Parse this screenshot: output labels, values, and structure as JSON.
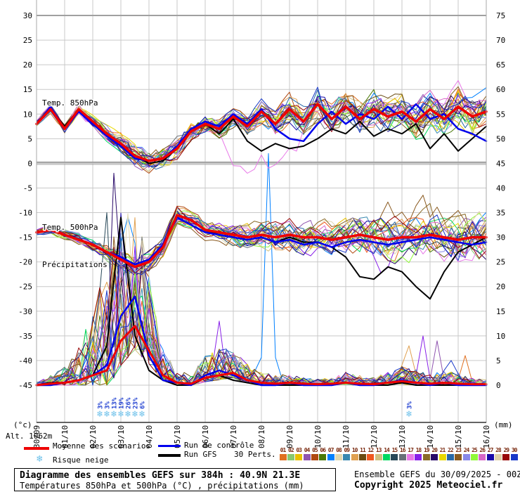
{
  "chart_data": {
    "type": "line",
    "title": "Diagramme des ensembles GEFS sur 384h : 40.9N 21.3E",
    "x_axis": {
      "dates": [
        "30/09",
        "01/10",
        "02/10",
        "03/10",
        "04/10",
        "05/10",
        "06/10",
        "07/10",
        "08/10",
        "09/10",
        "10/10",
        "11/10",
        "12/10",
        "13/10",
        "14/10",
        "15/10",
        "16/10"
      ],
      "hours_step": 12,
      "total_hours": 384
    },
    "y_axis_left": {
      "label": "(°c)",
      "min": -45,
      "max": 30,
      "tick_step": 5,
      "ticks": [
        30,
        25,
        20,
        15,
        10,
        5,
        0,
        -5,
        -10,
        -15,
        -20,
        -25,
        -30,
        -35,
        -40,
        -45
      ]
    },
    "y_axis_right": {
      "label": "(mm)",
      "min": 0,
      "max": 75,
      "tick_step": 5,
      "ticks": [
        75,
        70,
        65,
        60,
        55,
        50,
        45,
        40,
        35,
        30,
        25,
        20,
        15,
        10,
        5,
        0
      ]
    },
    "annotations": {
      "temp850": "Temp. 850hPa",
      "temp500": "Temp. 500hPa",
      "precip": "Précipitations",
      "altitude": "Alt. 1062m"
    },
    "series": {
      "mean_850": [
        8,
        11,
        7,
        11,
        8.5,
        6,
        4,
        1.5,
        0.5,
        1,
        3,
        6.5,
        8,
        7,
        9.5,
        7.5,
        10.5,
        8,
        11,
        8.5,
        12,
        9,
        11.5,
        9,
        11,
        9.5,
        10.5,
        8.5,
        11,
        9,
        11.5,
        9.5,
        10.5
      ],
      "control_850": [
        8,
        11.5,
        7,
        10.5,
        8,
        5.5,
        3.5,
        1,
        0.5,
        1,
        3.5,
        7,
        8.5,
        7.5,
        10,
        8,
        11,
        7,
        5,
        4.5,
        8,
        10.5,
        8,
        10,
        9,
        11.5,
        9,
        12,
        9,
        10,
        7,
        6,
        4.5
      ],
      "gfs_850": [
        8,
        11,
        7.5,
        11,
        8.5,
        6,
        4,
        1.5,
        0,
        0.5,
        3,
        6.5,
        8,
        6,
        9,
        4.5,
        2.5,
        4,
        3,
        3.5,
        5,
        7,
        6,
        8.5,
        5.5,
        7,
        6,
        8,
        3,
        6,
        2.5,
        5,
        7.5
      ],
      "mean_500": [
        -14,
        -13.5,
        -14.5,
        -15.5,
        -16.5,
        -18,
        -19.5,
        -21,
        -20,
        -17,
        -10.5,
        -11.5,
        -13.5,
        -14,
        -14.5,
        -15,
        -14.5,
        -15,
        -14.5,
        -15,
        -15,
        -15.5,
        -15,
        -14.5,
        -15,
        -15.5,
        -15,
        -15,
        -14.5,
        -15,
        -15.5,
        -15,
        -15
      ],
      "control_500": [
        -14,
        -13.5,
        -14.5,
        -15.5,
        -16.5,
        -18,
        -19,
        -20.5,
        -19.5,
        -16.5,
        -11,
        -12.5,
        -14,
        -14.5,
        -15,
        -15.5,
        -15,
        -16,
        -15.5,
        -16.5,
        -16,
        -17,
        -16,
        -15.5,
        -16,
        -16.5,
        -16,
        -15.5,
        -15,
        -15.5,
        -16,
        -16.5,
        -16
      ],
      "gfs_500": [
        -14,
        -13.5,
        -14.5,
        -15.5,
        -16.5,
        -18,
        -19.5,
        -21,
        -20,
        -17,
        -10.5,
        -11.5,
        -13.5,
        -14.5,
        -15,
        -15.5,
        -15,
        -16,
        -15,
        -16,
        -16,
        -17,
        -19,
        -23,
        -23.5,
        -21,
        -22,
        -25,
        -27.5,
        -22,
        -18,
        -16.5,
        -15
      ],
      "mean_precip_mm": [
        0,
        0.3,
        0.5,
        1,
        2,
        3,
        9,
        12,
        7,
        2,
        0.5,
        0.3,
        1.5,
        2,
        2.5,
        1,
        0.5,
        0.3,
        0.5,
        0.3,
        0.2,
        0.3,
        0.5,
        0.3,
        0.2,
        0.5,
        0.8,
        0.5,
        0.3,
        0.5,
        0.3,
        0.2,
        0.2
      ],
      "control_precip_mm": [
        0,
        0,
        0.5,
        1,
        2,
        4,
        14,
        18,
        6,
        1,
        0.5,
        0,
        2,
        3,
        2,
        1,
        0,
        0,
        0.5,
        0,
        0,
        0,
        0.5,
        0,
        0,
        0.5,
        1,
        0.5,
        0,
        0.5,
        0,
        0,
        0
      ],
      "gfs_precip_mm": [
        0,
        0.5,
        0.5,
        1,
        2,
        8,
        34,
        10,
        3,
        1,
        0,
        0,
        1.5,
        2,
        1,
        0.5,
        0,
        0,
        0,
        0,
        0,
        0,
        0.5,
        0,
        0,
        0,
        0.5,
        0,
        0,
        0,
        0,
        0,
        0
      ],
      "ensemble_spread_850": [
        0.8,
        0.8,
        0.9,
        1,
        1.2,
        1.5,
        2,
        2.2,
        2.2,
        2.2,
        2.2,
        2,
        1.8,
        1.8,
        2,
        2.2,
        2.5,
        2.8,
        3,
        3,
        3.2,
        3.2,
        3.2,
        3.4,
        3.4,
        3.6,
        3.6,
        3.8,
        3.8,
        3.8,
        4,
        4,
        4
      ],
      "ensemble_spread_500": [
        0.7,
        0.8,
        0.9,
        1,
        1.3,
        1.6,
        2,
        2.2,
        2.2,
        2,
        1.8,
        1.6,
        1.6,
        1.8,
        2.2,
        2.5,
        2.8,
        3,
        3.2,
        3.2,
        3.4,
        3.6,
        3.6,
        3.8,
        3.8,
        4,
        4.2,
        4.4,
        4.6,
        4.6,
        4.8,
        4.8,
        4.8
      ],
      "ensemble_spread_precip": [
        0.3,
        0.8,
        1.5,
        3,
        6,
        10,
        13,
        12,
        7,
        2.5,
        1,
        1,
        2,
        2.5,
        2.5,
        1.5,
        1,
        0.8,
        0.8,
        0.6,
        0.5,
        0.6,
        1,
        0.8,
        0.6,
        1,
        1.5,
        1.2,
        0.8,
        1.2,
        1,
        0.6,
        0.4
      ],
      "outlier_precip_spikes": [
        {
          "member": 7,
          "hour": 198,
          "mm": 47
        },
        {
          "member": 20,
          "hour": 66,
          "mm": 43
        },
        {
          "member": 15,
          "hour": 60,
          "mm": 35
        },
        {
          "member": 11,
          "hour": 72,
          "mm": 30
        },
        {
          "member": 18,
          "hour": 156,
          "mm": 13
        },
        {
          "member": 18,
          "hour": 330,
          "mm": 10
        },
        {
          "member": 4,
          "hour": 342,
          "mm": 9
        },
        {
          "member": 10,
          "hour": 318,
          "mm": 8
        },
        {
          "member": 30,
          "hour": 354,
          "mm": 5
        },
        {
          "member": 1,
          "hour": 366,
          "mm": 6
        }
      ],
      "member_offsets_850": [
        {
          "member": 17,
          "from_hour": 156,
          "to_hour": 228,
          "delta": -8
        }
      ],
      "member_offsets_500": [
        {
          "member": 23,
          "from_hour": 288,
          "to_hour": 372,
          "delta": 4
        },
        {
          "member": 18,
          "from_hour": 276,
          "to_hour": 312,
          "delta": -5
        }
      ]
    },
    "members": {
      "count": 30,
      "colors": [
        "#e07020",
        "#88c870",
        "#e8c000",
        "#9055b0",
        "#b04810",
        "#4a7a08",
        "#0080ff",
        "#e0d8b0",
        "#3888b0",
        "#e0a050",
        "#6a4a10",
        "#f05820",
        "#d0c080",
        "#00d860",
        "#284858",
        "#687078",
        "#e878e8",
        "#8820e8",
        "#8a6a28",
        "#280868",
        "#e8d800",
        "#2868a8",
        "#8a5a20",
        "#8888e8",
        "#90f838",
        "#d868c8",
        "#1808a8",
        "#e0d0a8",
        "#980808",
        "#1838c8"
      ]
    },
    "snow_risk": [
      {
        "hour": 54,
        "pct": "3%"
      },
      {
        "hour": 60,
        "pct": "3%"
      },
      {
        "hour": 66,
        "pct": "13%"
      },
      {
        "hour": 72,
        "pct": "19%"
      },
      {
        "hour": 78,
        "pct": "26%"
      },
      {
        "hour": 84,
        "pct": "23%"
      },
      {
        "hour": 90,
        "pct": "6%"
      },
      {
        "hour": 318,
        "pct": "3%"
      }
    ]
  },
  "legend": {
    "mean": "Moyenne des scénarios",
    "control": "Run de contrôle",
    "gfs": "Run GFS",
    "perts": "30 Perts.",
    "snow": "Risque neige",
    "member_numbers": [
      "01",
      "02",
      "03",
      "04",
      "05",
      "06",
      "07",
      "08",
      "09",
      "10",
      "11",
      "12",
      "13",
      "14",
      "15",
      "16",
      "17",
      "18",
      "19",
      "20",
      "21",
      "22",
      "23",
      "24",
      "25",
      "26",
      "27",
      "28",
      "29",
      "30"
    ]
  },
  "footer": {
    "title": "Diagramme des ensembles GEFS sur 384h : 40.9N 21.3E",
    "subtitle": "Températures 850hPa et 500hPa (°C) , précipitations (mm)",
    "run_info": "Ensemble GEFS du 30/09/2025 - 00Z",
    "copyright": "Copyright 2025 Meteociel.fr"
  },
  "colors": {
    "mean": "#ee0000",
    "control": "#0000ee",
    "gfs": "#000000",
    "grid": "#c9c9c9",
    "grid_strong": "#a0a0a0",
    "axis": "#303030",
    "snowflake": "#6cc0ea",
    "snow_pct": "#1f3fd0",
    "member_number": "#7a2a10"
  }
}
